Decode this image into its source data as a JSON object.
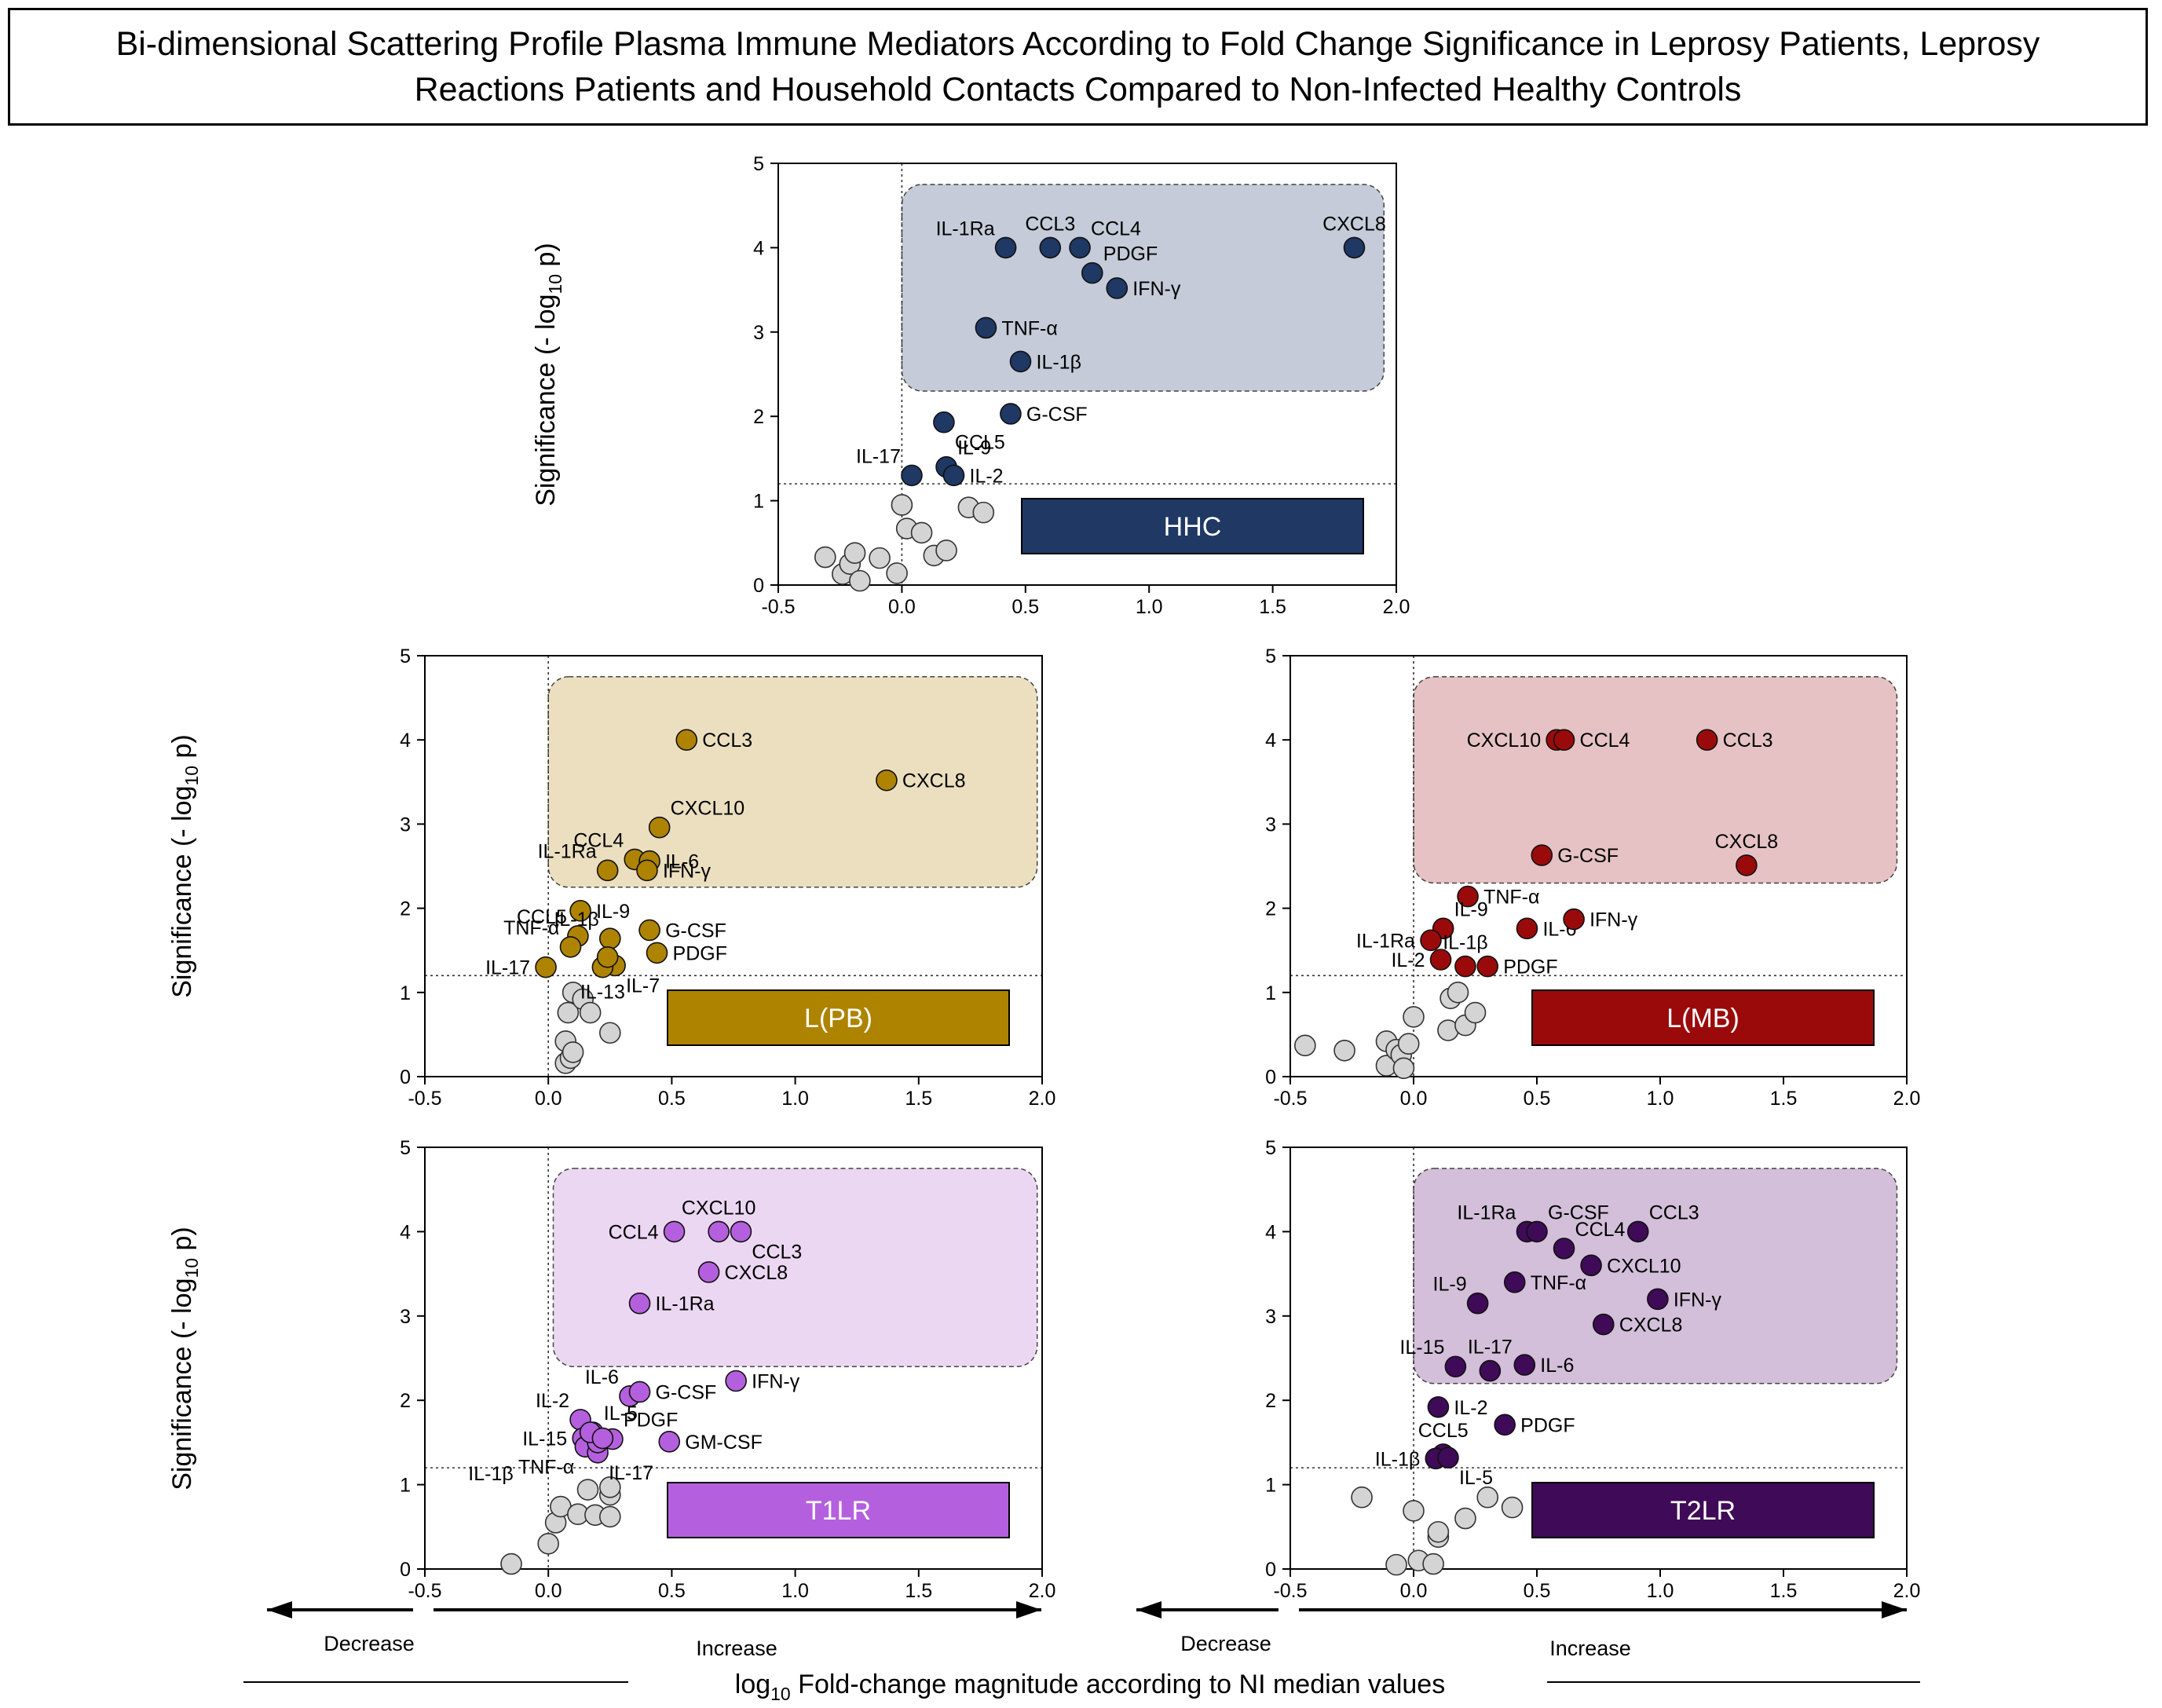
{
  "title": "Bi-dimensional Scattering Profile Plasma Immune Mediators According to Fold Change Significance in Leprosy Patients, Leprosy Reactions Patients and Household Contacts Compared to Non-Infected Healthy Controls",
  "axes": {
    "ylabel_main": "Significance (- log",
    "ylabel_sub": "10",
    "ylabel_tail": " p)",
    "xlabel_main": "Fold-change magnitude according to NI median values",
    "xlabel_log": "log",
    "xlabel_sub": "10",
    "decrease_label": "Decrease",
    "increase_label": "Increase"
  },
  "chart_data": [
    {
      "id": "hhc",
      "type": "scatter",
      "group_label": "HHC",
      "color": "#1f3864",
      "box_color": "#c5cbd8",
      "xlim": [
        -0.5,
        2.0
      ],
      "ylim": [
        0,
        5
      ],
      "xticks": [
        -0.5,
        0.0,
        0.5,
        1.0,
        1.5,
        2.0
      ],
      "yticks": [
        0,
        1,
        2,
        3,
        4,
        5
      ],
      "threshold_y": 1.2,
      "highlight_region": {
        "x": [
          0.0,
          1.95
        ],
        "y": [
          2.3,
          4.75
        ]
      },
      "points": [
        {
          "label": "IL-1Ra",
          "x": 0.42,
          "y": 4.0,
          "pos": "tl"
        },
        {
          "label": "CCL3",
          "x": 0.6,
          "y": 4.0,
          "pos": "t"
        },
        {
          "label": "CCL4",
          "x": 0.72,
          "y": 4.0,
          "pos": "tr"
        },
        {
          "label": "PDGF",
          "x": 0.77,
          "y": 3.7,
          "pos": "tr"
        },
        {
          "label": "IFN-γ",
          "x": 0.87,
          "y": 3.52,
          "pos": "r"
        },
        {
          "label": "CXCL8",
          "x": 1.83,
          "y": 4.0,
          "pos": "t"
        },
        {
          "label": "TNF-α",
          "x": 0.34,
          "y": 3.05,
          "pos": "r"
        },
        {
          "label": "IL-1β",
          "x": 0.48,
          "y": 2.65,
          "pos": "r"
        },
        {
          "label": "G-CSF",
          "x": 0.44,
          "y": 2.03,
          "pos": "r"
        },
        {
          "label": "CCL5",
          "x": 0.17,
          "y": 1.93,
          "pos": "br"
        },
        {
          "label": "IL-17",
          "x": 0.04,
          "y": 1.3,
          "pos": "tl"
        },
        {
          "label": "IL-9",
          "x": 0.18,
          "y": 1.4,
          "pos": "tr"
        },
        {
          "label": "IL-2",
          "x": 0.21,
          "y": 1.3,
          "pos": "r"
        }
      ],
      "nonsig": [
        [
          -0.31,
          0.33
        ],
        [
          -0.24,
          0.13
        ],
        [
          -0.21,
          0.25
        ],
        [
          -0.19,
          0.38
        ],
        [
          -0.17,
          0.05
        ],
        [
          -0.09,
          0.32
        ],
        [
          -0.02,
          0.14
        ],
        [
          0.0,
          0.95
        ],
        [
          0.02,
          0.67
        ],
        [
          0.08,
          0.62
        ],
        [
          0.13,
          0.35
        ],
        [
          0.18,
          0.41
        ],
        [
          0.27,
          0.92
        ],
        [
          0.33,
          0.86
        ]
      ]
    },
    {
      "id": "lpb",
      "type": "scatter",
      "group_label": "L(PB)",
      "color": "#ae8300",
      "box_color": "#ebdfbf",
      "xlim": [
        -0.5,
        2.0
      ],
      "ylim": [
        0,
        5
      ],
      "xticks": [
        -0.5,
        0.0,
        0.5,
        1.0,
        1.5,
        2.0
      ],
      "yticks": [
        0,
        1,
        2,
        3,
        4,
        5
      ],
      "threshold_y": 1.2,
      "highlight_region": {
        "x": [
          0.0,
          1.98
        ],
        "y": [
          2.25,
          4.75
        ]
      },
      "points": [
        {
          "label": "CCL3",
          "x": 0.56,
          "y": 4.0,
          "pos": "r"
        },
        {
          "label": "CXCL8",
          "x": 1.37,
          "y": 3.52,
          "pos": "r"
        },
        {
          "label": "CXCL10",
          "x": 0.45,
          "y": 2.96,
          "pos": "tr"
        },
        {
          "label": "CCL4",
          "x": 0.35,
          "y": 2.58,
          "pos": "tl"
        },
        {
          "label": "IL-1Ra",
          "x": 0.24,
          "y": 2.45,
          "pos": "tl"
        },
        {
          "label": "IL-6",
          "x": 0.41,
          "y": 2.56,
          "pos": "r"
        },
        {
          "label": "IFN-γ",
          "x": 0.4,
          "y": 2.45,
          "pos": "r"
        },
        {
          "label": "IL-9",
          "x": 0.13,
          "y": 1.97,
          "pos": "r"
        },
        {
          "label": "CCL5",
          "x": 0.12,
          "y": 1.67,
          "pos": "tl"
        },
        {
          "label": "IL-1β",
          "x": 0.25,
          "y": 1.64,
          "pos": "tl"
        },
        {
          "label": "TNF-α",
          "x": 0.09,
          "y": 1.54,
          "pos": "tl"
        },
        {
          "label": "G-CSF",
          "x": 0.41,
          "y": 1.74,
          "pos": "r"
        },
        {
          "label": "PDGF",
          "x": 0.44,
          "y": 1.47,
          "pos": "r"
        },
        {
          "label": "IL-17",
          "x": -0.01,
          "y": 1.3,
          "pos": "l"
        },
        {
          "label": "IL-7",
          "x": 0.27,
          "y": 1.32,
          "pos": "br"
        },
        {
          "label": "IL-13",
          "x": 0.22,
          "y": 1.3,
          "pos": "b"
        },
        {
          "label": "",
          "x": 0.24,
          "y": 1.42,
          "pos": "r"
        }
      ],
      "nonsig": [
        [
          0.07,
          0.42
        ],
        [
          0.07,
          0.16
        ],
        [
          0.08,
          0.76
        ],
        [
          0.09,
          0.22
        ],
        [
          0.1,
          0.29
        ],
        [
          0.1,
          1.0
        ],
        [
          0.14,
          0.92
        ],
        [
          0.17,
          0.76
        ],
        [
          0.25,
          0.52
        ]
      ]
    },
    {
      "id": "lmb",
      "type": "scatter",
      "group_label": "L(MB)",
      "color": "#9b0a0a",
      "box_color": "#e6c2c4",
      "xlim": [
        -0.5,
        2.0
      ],
      "ylim": [
        0,
        5
      ],
      "xticks": [
        -0.5,
        0.0,
        0.5,
        1.0,
        1.5,
        2.0
      ],
      "yticks": [
        0,
        1,
        2,
        3,
        4,
        5
      ],
      "threshold_y": 1.2,
      "highlight_region": {
        "x": [
          0.0,
          1.96
        ],
        "y": [
          2.3,
          4.75
        ]
      },
      "points": [
        {
          "label": "CXCL10",
          "x": 0.58,
          "y": 4.0,
          "pos": "l"
        },
        {
          "label": "CCL4",
          "x": 0.61,
          "y": 4.0,
          "pos": "r"
        },
        {
          "label": "CCL3",
          "x": 1.19,
          "y": 4.0,
          "pos": "r"
        },
        {
          "label": "G-CSF",
          "x": 0.52,
          "y": 2.63,
          "pos": "r"
        },
        {
          "label": "CXCL8",
          "x": 1.35,
          "y": 2.51,
          "pos": "t"
        },
        {
          "label": "TNF-α",
          "x": 0.22,
          "y": 2.14,
          "pos": "r"
        },
        {
          "label": "IL-9",
          "x": 0.12,
          "y": 1.76,
          "pos": "tr"
        },
        {
          "label": "IL-6",
          "x": 0.46,
          "y": 1.76,
          "pos": "r"
        },
        {
          "label": "IFN-γ",
          "x": 0.65,
          "y": 1.87,
          "pos": "r"
        },
        {
          "label": "IL-1Ra",
          "x": 0.07,
          "y": 1.62,
          "pos": "l"
        },
        {
          "label": "IL-1β",
          "x": 0.21,
          "y": 1.31,
          "pos": "t"
        },
        {
          "label": "IL-2",
          "x": 0.11,
          "y": 1.39,
          "pos": "l"
        },
        {
          "label": "PDGF",
          "x": 0.3,
          "y": 1.31,
          "pos": "r"
        }
      ],
      "nonsig": [
        [
          -0.44,
          0.37
        ],
        [
          -0.28,
          0.31
        ],
        [
          -0.11,
          0.42
        ],
        [
          -0.11,
          0.13
        ],
        [
          -0.07,
          0.32
        ],
        [
          -0.05,
          0.26
        ],
        [
          -0.04,
          0.1
        ],
        [
          -0.02,
          0.39
        ],
        [
          0.0,
          0.71
        ],
        [
          0.14,
          0.55
        ],
        [
          0.15,
          0.93
        ],
        [
          0.18,
          1.0
        ],
        [
          0.21,
          0.61
        ],
        [
          0.25,
          0.76
        ]
      ]
    },
    {
      "id": "t1lr",
      "type": "scatter",
      "group_label": "T1LR",
      "color": "#b460de",
      "box_color": "#ecd7f3",
      "xlim": [
        -0.5,
        2.0
      ],
      "ylim": [
        0,
        5
      ],
      "xticks": [
        -0.5,
        0.0,
        0.5,
        1.0,
        1.5,
        2.0
      ],
      "yticks": [
        0,
        1,
        2,
        3,
        4,
        5
      ],
      "threshold_y": 1.2,
      "highlight_region": {
        "x": [
          0.02,
          1.98
        ],
        "y": [
          2.4,
          4.75
        ]
      },
      "points": [
        {
          "label": "CCL4",
          "x": 0.51,
          "y": 4.0,
          "pos": "l"
        },
        {
          "label": "CXCL10",
          "x": 0.69,
          "y": 4.0,
          "pos": "t"
        },
        {
          "label": "CCL3",
          "x": 0.78,
          "y": 4.0,
          "pos": "br"
        },
        {
          "label": "CXCL8",
          "x": 0.65,
          "y": 3.52,
          "pos": "r"
        },
        {
          "label": "IL-1Ra",
          "x": 0.37,
          "y": 3.15,
          "pos": "r"
        },
        {
          "label": "IFN-γ",
          "x": 0.76,
          "y": 2.23,
          "pos": "r"
        },
        {
          "label": "IL-6",
          "x": 0.33,
          "y": 2.05,
          "pos": "tl"
        },
        {
          "label": "G-CSF",
          "x": 0.37,
          "y": 2.1,
          "pos": "r"
        },
        {
          "label": "IL-2",
          "x": 0.13,
          "y": 1.77,
          "pos": "tl"
        },
        {
          "label": "IL-5",
          "x": 0.18,
          "y": 1.62,
          "pos": "tr"
        },
        {
          "label": "PDGF",
          "x": 0.26,
          "y": 1.54,
          "pos": "tr"
        },
        {
          "label": "GM-CSF",
          "x": 0.49,
          "y": 1.51,
          "pos": "r"
        },
        {
          "label": "IL-15",
          "x": 0.14,
          "y": 1.55,
          "pos": "l"
        },
        {
          "label": "TNF-α",
          "x": 0.15,
          "y": 1.45,
          "pos": "bl"
        },
        {
          "label": "IL-17",
          "x": 0.2,
          "y": 1.38,
          "pos": "br"
        },
        {
          "label": "IL-1β",
          "x": 0.2,
          "y": 1.5,
          "pos": "none"
        },
        {
          "label": "",
          "x": 0.17,
          "y": 1.62,
          "pos": "none"
        },
        {
          "label": "",
          "x": 0.22,
          "y": 1.55,
          "pos": "none"
        }
      ],
      "nonsig": [
        [
          -0.15,
          0.06
        ],
        [
          0.0,
          0.3
        ],
        [
          0.03,
          0.55
        ],
        [
          0.05,
          0.74
        ],
        [
          0.12,
          0.65
        ],
        [
          0.16,
          0.94
        ],
        [
          0.19,
          0.64
        ],
        [
          0.25,
          0.62
        ],
        [
          0.25,
          0.88
        ],
        [
          0.25,
          0.97
        ]
      ]
    },
    {
      "id": "t2lr",
      "type": "scatter",
      "group_label": "T2LR",
      "color": "#3f0a57",
      "box_color": "#d3bfd9",
      "xlim": [
        -0.5,
        2.0
      ],
      "ylim": [
        0,
        5
      ],
      "xticks": [
        -0.5,
        0.0,
        0.5,
        1.0,
        1.5,
        2.0
      ],
      "yticks": [
        0,
        1,
        2,
        3,
        4,
        5
      ],
      "threshold_y": 1.2,
      "highlight_region": {
        "x": [
          0.0,
          1.96
        ],
        "y": [
          2.2,
          4.75
        ]
      },
      "points": [
        {
          "label": "IL-1Ra",
          "x": 0.46,
          "y": 4.0,
          "pos": "tl"
        },
        {
          "label": "G-CSF",
          "x": 0.5,
          "y": 4.0,
          "pos": "tr"
        },
        {
          "label": "CCL3",
          "x": 0.91,
          "y": 4.0,
          "pos": "tr"
        },
        {
          "label": "CCL4",
          "x": 0.61,
          "y": 3.8,
          "pos": "tr"
        },
        {
          "label": "CXCL10",
          "x": 0.72,
          "y": 3.6,
          "pos": "r"
        },
        {
          "label": "IL-9",
          "x": 0.26,
          "y": 3.15,
          "pos": "tl"
        },
        {
          "label": "TNF-α",
          "x": 0.41,
          "y": 3.4,
          "pos": "r"
        },
        {
          "label": "IFN-γ",
          "x": 0.99,
          "y": 3.2,
          "pos": "r"
        },
        {
          "label": "CXCL8",
          "x": 0.77,
          "y": 2.9,
          "pos": "r"
        },
        {
          "label": "IL-15",
          "x": 0.17,
          "y": 2.4,
          "pos": "tl"
        },
        {
          "label": "IL-17",
          "x": 0.31,
          "y": 2.35,
          "pos": "t"
        },
        {
          "label": "IL-6",
          "x": 0.45,
          "y": 2.42,
          "pos": "r"
        },
        {
          "label": "IL-2",
          "x": 0.1,
          "y": 1.92,
          "pos": "r"
        },
        {
          "label": "PDGF",
          "x": 0.37,
          "y": 1.71,
          "pos": "r"
        },
        {
          "label": "CCL5",
          "x": 0.12,
          "y": 1.36,
          "pos": "t"
        },
        {
          "label": "IL-1β",
          "x": 0.09,
          "y": 1.31,
          "pos": "l"
        },
        {
          "label": "IL-5",
          "x": 0.14,
          "y": 1.32,
          "pos": "br"
        }
      ],
      "nonsig": [
        [
          -0.21,
          0.85
        ],
        [
          -0.07,
          0.05
        ],
        [
          0.0,
          0.69
        ],
        [
          0.02,
          0.1
        ],
        [
          0.08,
          0.06
        ],
        [
          0.1,
          0.38
        ],
        [
          0.1,
          0.44
        ],
        [
          0.21,
          0.6
        ],
        [
          0.3,
          0.85
        ],
        [
          0.4,
          0.73
        ]
      ]
    }
  ]
}
